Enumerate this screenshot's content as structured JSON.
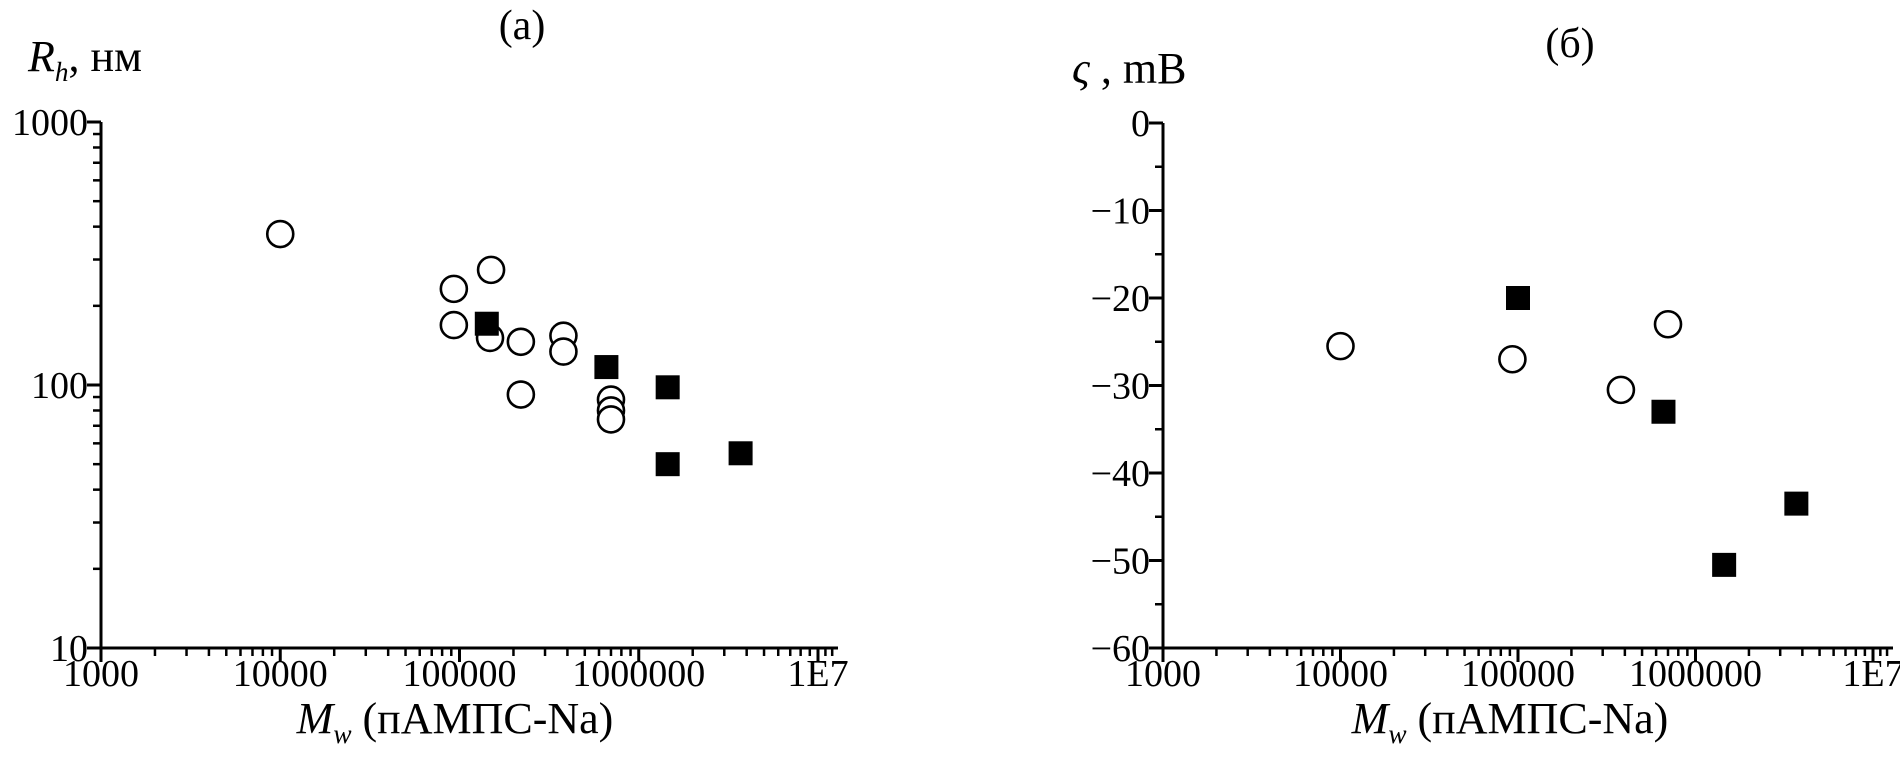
{
  "figure": {
    "background": "#ffffff",
    "ink_color": "#000000",
    "marker_fill": "#ffffff"
  },
  "chart_data": [
    {
      "id": "a",
      "type": "scatter",
      "title": "(a)",
      "legend": "none",
      "grid": false,
      "x_axis": {
        "label_main": "M",
        "label_sub": "w",
        "label_rest": " (пАМПС-Na)",
        "scale": "log",
        "min": 1000,
        "max": 10000000,
        "tick_values": [
          1000,
          10000,
          100000,
          1000000,
          10000000
        ],
        "tick_labels": [
          "1000",
          "10000",
          "100000",
          "1000000",
          "1E7"
        ]
      },
      "y_axis": {
        "label_main": "R",
        "label_sub": "h",
        "label_rest": ", нм",
        "scale": "log",
        "min": 10,
        "max": 1000,
        "tick_values": [
          1000,
          100,
          10
        ],
        "tick_labels": [
          "1000",
          "100",
          "10"
        ]
      },
      "series": [
        {
          "name": "open-circles",
          "marker": "circle",
          "points": [
            [
              10000,
              375
            ],
            [
              93000,
              232
            ],
            [
              150000,
              274
            ],
            [
              93000,
              169
            ],
            [
              148000,
              151
            ],
            [
              220000,
              146
            ],
            [
              380000,
              154
            ],
            [
              380000,
              134
            ],
            [
              220000,
              92
            ],
            [
              700000,
              88
            ],
            [
              700000,
              80
            ],
            [
              700000,
              74
            ]
          ]
        },
        {
          "name": "filled-squares",
          "marker": "square",
          "points": [
            [
              142000,
              171
            ],
            [
              660000,
              117
            ],
            [
              1450000,
              98
            ],
            [
              1450000,
              50
            ],
            [
              3700000,
              55
            ]
          ]
        }
      ]
    },
    {
      "id": "b",
      "type": "scatter",
      "title": "(б)",
      "legend": "none",
      "grid": false,
      "x_axis": {
        "label_main": "M",
        "label_sub": "w",
        "label_rest": " (пАМПС-Na)",
        "scale": "log",
        "min": 1000,
        "max": 10000000,
        "tick_values": [
          1000,
          10000,
          100000,
          1000000,
          10000000
        ],
        "tick_labels": [
          "1000",
          "10000",
          "100000",
          "1000000",
          "1E7"
        ]
      },
      "y_axis": {
        "label_main": "ς",
        "label_rest": " , mB",
        "scale": "linear",
        "min": -60,
        "max": 0,
        "tick_values": [
          0,
          -10,
          -20,
          -30,
          -40,
          -50,
          -60
        ],
        "tick_labels": [
          "0",
          "−10",
          "−20",
          "−30",
          "−40",
          "−50",
          "−60"
        ]
      },
      "series": [
        {
          "name": "open-circles",
          "marker": "circle",
          "points": [
            [
              10000,
              -25.5
            ],
            [
              93000,
              -27
            ],
            [
              380000,
              -30.5
            ],
            [
              700000,
              -23
            ]
          ]
        },
        {
          "name": "filled-squares",
          "marker": "square",
          "points": [
            [
              100000,
              -20
            ],
            [
              660000,
              -33
            ],
            [
              1450000,
              -50.5
            ],
            [
              3700000,
              -43.5
            ]
          ]
        }
      ]
    }
  ]
}
